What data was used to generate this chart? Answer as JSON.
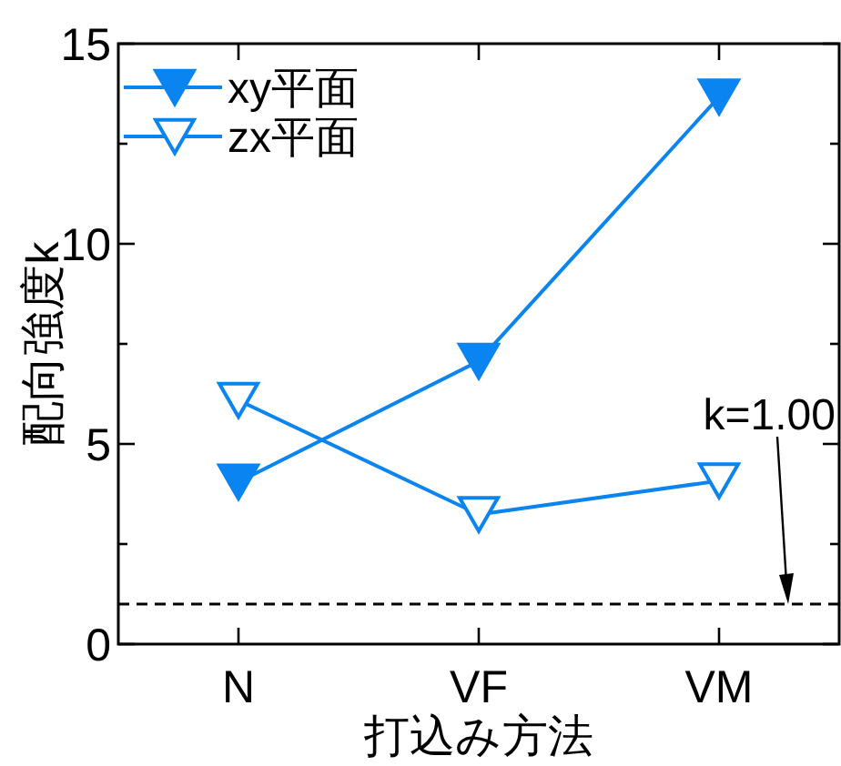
{
  "chart_data": {
    "type": "line",
    "xlabel": "打込み方法",
    "ylabel": "配向強度k",
    "categories": [
      "N",
      "VF",
      "VM"
    ],
    "series": [
      {
        "name": "xy平面",
        "color": "#0a84f0",
        "values": [
          4.05,
          7.07,
          13.67
        ],
        "marker": "triangle"
      },
      {
        "name": "zx平面",
        "color": "#0a84f0",
        "values": [
          6.09,
          3.24,
          4.08
        ],
        "marker": "triangle"
      }
    ],
    "ylim": [
      0,
      15
    ],
    "yticks": [
      0,
      {
        "value": 2.5,
        "label": null
      },
      5,
      {
        "value": 7.5,
        "label": null
      },
      10,
      {
        "value": 12.5,
        "label": null
      },
      15
    ],
    "ref_lines": [
      {
        "axis": "y",
        "value": 1.0,
        "color": "#000000",
        "line_style": "dashed"
      }
    ],
    "annotations": [
      "k=1.00"
    ],
    "grid": false,
    "legend": "top left",
    "line_style": "solid"
  }
}
